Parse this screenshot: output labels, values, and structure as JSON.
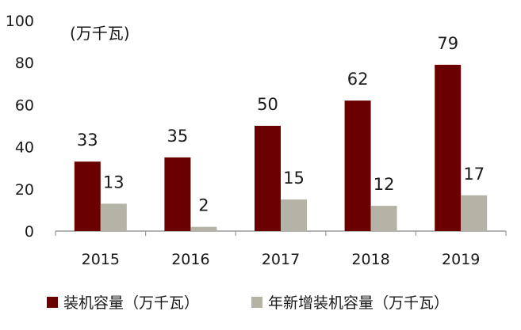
{
  "chart_data": {
    "type": "bar",
    "unit_label": "(万千瓦)",
    "categories": [
      "2015",
      "2016",
      "2017",
      "2018",
      "2019"
    ],
    "series": [
      {
        "name": "装机容量（万千瓦）",
        "values": [
          33,
          35,
          50,
          62,
          79
        ],
        "color": "#6b0000"
      },
      {
        "name": "年新增装机容量（万千瓦）",
        "values": [
          13,
          2,
          15,
          12,
          17
        ],
        "color": "#b5b3a5"
      }
    ],
    "y_ticks": [
      "0",
      "20",
      "40",
      "60",
      "80",
      "100"
    ],
    "ylim": [
      0,
      100
    ],
    "grid": false,
    "legend_position": "bottom"
  }
}
